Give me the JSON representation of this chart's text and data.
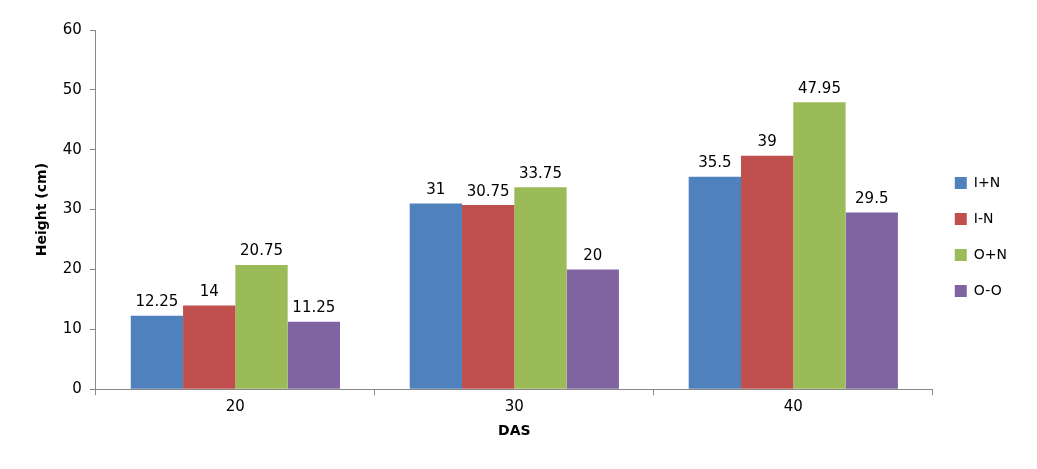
{
  "chart_data": {
    "type": "bar",
    "xlabel": "DAS",
    "ylabel": "Height (cm)",
    "categories": [
      "20",
      "30",
      "40"
    ],
    "series": [
      {
        "name": "I+N",
        "color": "#4f81bd",
        "values": [
          12.25,
          31,
          35.5
        ]
      },
      {
        "name": "I-N",
        "color": "#c0504d",
        "values": [
          14,
          30.75,
          39
        ]
      },
      {
        "name": "O+N",
        "color": "#9bbb59",
        "values": [
          20.75,
          33.75,
          47.95
        ]
      },
      {
        "name": "O-O",
        "color": "#8064a2",
        "values": [
          11.25,
          20,
          29.5
        ]
      }
    ],
    "ylim": [
      0,
      60
    ],
    "yticks": [
      0,
      10,
      20,
      30,
      40,
      50,
      60
    ],
    "grid": false,
    "legend": "right",
    "data_labels": true
  }
}
